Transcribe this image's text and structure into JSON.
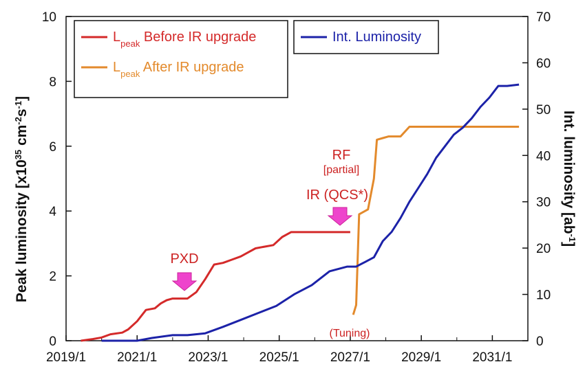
{
  "chart_data": {
    "type": "line",
    "xlabel": "",
    "ylabel_left": "Peak luminosity [x10<sup>35</sup> cm<sup>-2</sup>s<sup>-1</sup>]",
    "ylabel_right": "Int. luminosity [ab<sup>-1</sup>]",
    "x_ticks": [
      "2019/1",
      "2021/1",
      "2023/1",
      "2025/1",
      "2027/1",
      "2029/1",
      "2031/1"
    ],
    "y_left_ticks": [
      "0",
      "2",
      "4",
      "6",
      "8",
      "10"
    ],
    "y_right_ticks": [
      "0",
      "10",
      "20",
      "30",
      "40",
      "50",
      "60",
      "70"
    ],
    "xlim": [
      "2019/1",
      "2032/1"
    ],
    "ylim_left": [
      0,
      10
    ],
    "ylim_right": [
      0,
      70
    ],
    "grid": false,
    "legend": [
      {
        "label": "L",
        "sub": "peak",
        "rest": "Before IR upgrade",
        "color": "#d42a2a"
      },
      {
        "label": "L",
        "sub": "peak",
        "rest": "After IR upgrade",
        "color": "#e38a2c"
      },
      {
        "label": "Int. Luminosity",
        "color": "#1c22a8"
      }
    ],
    "series": [
      {
        "name": "Lpeak Before IR upgrade",
        "axis": "left",
        "color": "#d42a2a",
        "x": [
          "2019/6",
          "2019/10",
          "2020/1",
          "2020/4",
          "2020/8",
          "2020/10",
          "2021/1",
          "2021/4",
          "2021/7",
          "2021/9",
          "2021/11",
          "2022/1",
          "2022/3",
          "2022/6",
          "2022/9",
          "2022/12",
          "2023/3",
          "2023/6",
          "2023/9",
          "2023/12",
          "2024/2",
          "2024/5",
          "2024/8",
          "2024/11",
          "2025/2",
          "2025/5",
          "2025/8",
          "2025/11",
          "2026/2",
          "2026/5",
          "2026/8",
          "2026/11",
          "2027/1"
        ],
        "values": [
          0,
          0.05,
          0.1,
          0.2,
          0.25,
          0.35,
          0.6,
          0.95,
          1.0,
          1.15,
          1.25,
          1.3,
          1.3,
          1.3,
          1.5,
          1.9,
          2.35,
          2.4,
          2.5,
          2.6,
          2.7,
          2.85,
          2.9,
          2.95,
          3.2,
          3.35,
          3.35,
          3.35,
          3.35,
          3.35,
          3.35,
          3.35,
          3.35
        ]
      },
      {
        "name": "Lpeak After IR upgrade",
        "axis": "left",
        "color": "#e38a2c",
        "x": [
          "2027/2",
          "2027/3",
          "2027/4",
          "2027/5",
          "2027/7",
          "2027/9",
          "2027/10",
          "2027/12",
          "2028/2",
          "2028/4",
          "2028/6",
          "2028/9",
          "2028/12",
          "2029/3",
          "2029/6",
          "2029/9",
          "2029/12",
          "2030/6",
          "2030/12",
          "2031/6",
          "2031/10"
        ],
        "values": [
          0.8,
          1.1,
          3.9,
          3.95,
          4.05,
          5.0,
          6.2,
          6.25,
          6.3,
          6.3,
          6.3,
          6.6,
          6.6,
          6.6,
          6.6,
          6.6,
          6.6,
          6.6,
          6.6,
          6.6,
          6.6
        ]
      },
      {
        "name": "Int. Luminosity",
        "axis": "right",
        "color": "#1c22a8",
        "x": [
          "2020/1",
          "2020/6",
          "2021/1",
          "2021/6",
          "2022/1",
          "2022/6",
          "2022/12",
          "2023/6",
          "2023/12",
          "2024/6",
          "2024/12",
          "2025/6",
          "2025/12",
          "2026/6",
          "2026/12",
          "2027/3",
          "2027/6",
          "2027/9",
          "2027/12",
          "2028/3",
          "2028/6",
          "2028/9",
          "2028/12",
          "2029/3",
          "2029/6",
          "2029/9",
          "2029/12",
          "2030/3",
          "2030/6",
          "2030/9",
          "2030/12",
          "2031/3",
          "2031/6",
          "2031/10"
        ],
        "values": [
          0,
          0,
          0,
          0.6,
          1.2,
          1.2,
          1.6,
          3.0,
          4.5,
          6.0,
          7.5,
          10.0,
          12.0,
          15.0,
          16.0,
          16.0,
          17.0,
          18.0,
          21.5,
          23.5,
          26.5,
          30.0,
          33.0,
          36.0,
          39.5,
          42.0,
          44.5,
          46.0,
          48.0,
          50.5,
          52.5,
          55.0,
          55.0,
          55.3
        ]
      }
    ],
    "annotations": [
      {
        "text": "PXD",
        "x": "2022/4"
      },
      {
        "text": "RF",
        "x": "2026/6"
      },
      {
        "text": "[partial]",
        "x": "2026/6"
      },
      {
        "text": "IR (QCS*)",
        "x": "2026/6"
      },
      {
        "text": "(Tuning)",
        "x": "2026/10"
      }
    ]
  }
}
